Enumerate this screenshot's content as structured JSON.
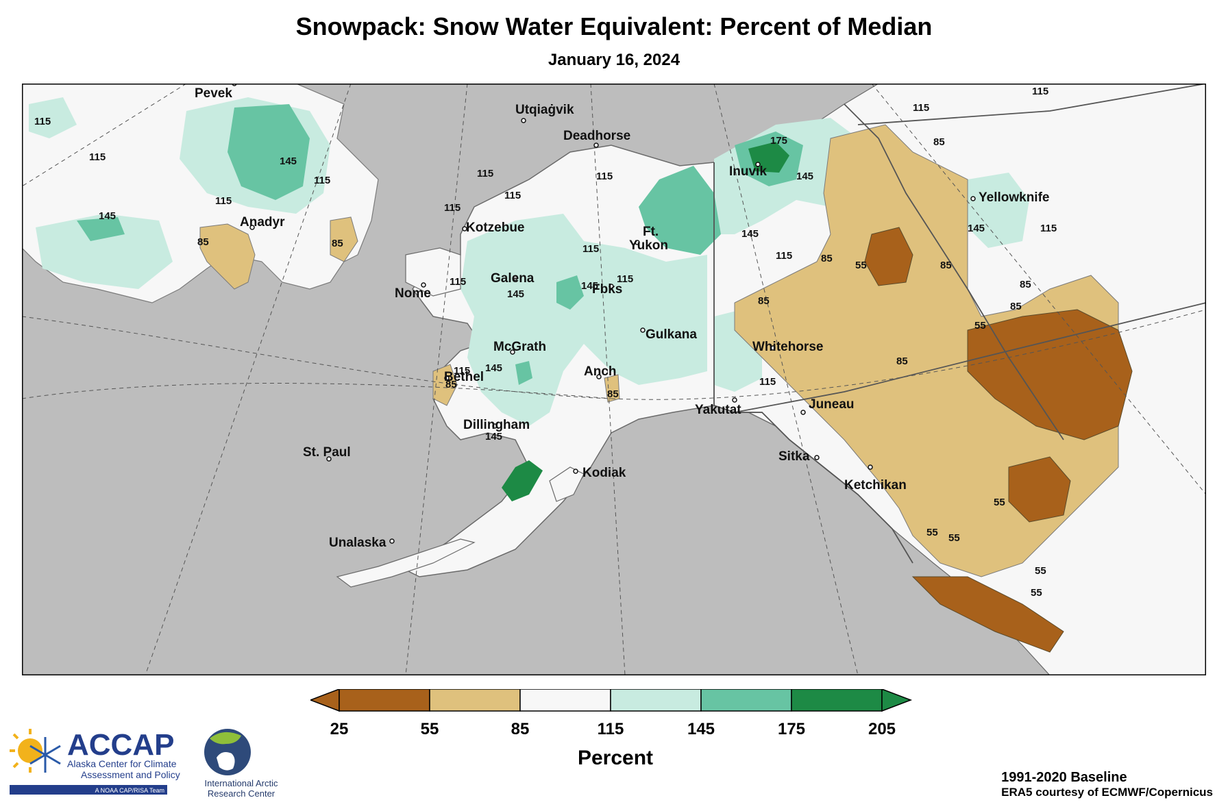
{
  "header": {
    "title": "Snowpack: Snow Water Equivalent: Percent of Median",
    "subtitle": "January 16, 2024"
  },
  "colors": {
    "ocean": "#bdbdbd",
    "land_outside": "#bdbdbd",
    "c25_55": "#a8611b",
    "c55_85": "#dfc17d",
    "c85_115": "#f7f7f7",
    "c115_145": "#c8ebe0",
    "c145_175": "#67c4a3",
    "c175_205": "#1d8a45"
  },
  "cities": [
    {
      "name": "Pevek"
    },
    {
      "name": "Utqiaġvik"
    },
    {
      "name": "Deadhorse"
    },
    {
      "name": "Inuvik"
    },
    {
      "name": "Yellowknife"
    },
    {
      "name": "Anadyr"
    },
    {
      "name": "Kotzebue"
    },
    {
      "name": "Ft."
    },
    {
      "name": "Yukon"
    },
    {
      "name": "Galena"
    },
    {
      "name": "Nome"
    },
    {
      "name": "Fbks"
    },
    {
      "name": "Gulkana"
    },
    {
      "name": "Whitehorse"
    },
    {
      "name": "McGrath"
    },
    {
      "name": "Bethel"
    },
    {
      "name": "Anch"
    },
    {
      "name": "Yakutat"
    },
    {
      "name": "Juneau"
    },
    {
      "name": "Dillingham"
    },
    {
      "name": "St. Paul"
    },
    {
      "name": "Kodiak"
    },
    {
      "name": "Sitka"
    },
    {
      "name": "Ketchikan"
    },
    {
      "name": "Unalaska"
    }
  ],
  "contour_labels": [
    "115",
    "115",
    "145",
    "115",
    "115",
    "85",
    "85",
    "145",
    "115",
    "115",
    "115",
    "115",
    "115",
    "145",
    "175",
    "145",
    "85",
    "115",
    "145",
    "115",
    "115",
    "85",
    "55",
    "85",
    "85",
    "85",
    "55",
    "85",
    "115",
    "115",
    "145",
    "115",
    "85",
    "55",
    "55",
    "55",
    "55",
    "55",
    "85",
    "115",
    "85",
    "145",
    "145",
    "145",
    "115"
  ],
  "legend": {
    "ticks": [
      "25",
      "55",
      "85",
      "115",
      "145",
      "175",
      "205"
    ],
    "unit": "Percent"
  },
  "logos": {
    "accap_name": "ACCAP",
    "accap_line1": "Alaska Center for Climate",
    "accap_line2": "Assessment and Policy",
    "accap_tag": "A NOAA CAP/RISA Team",
    "iarc_line1": "International Arctic",
    "iarc_line2": "Research Center"
  },
  "credits": {
    "baseline": "1991-2020 Baseline",
    "source": "ERA5 courtesy of ECMWF/Copernicus"
  }
}
